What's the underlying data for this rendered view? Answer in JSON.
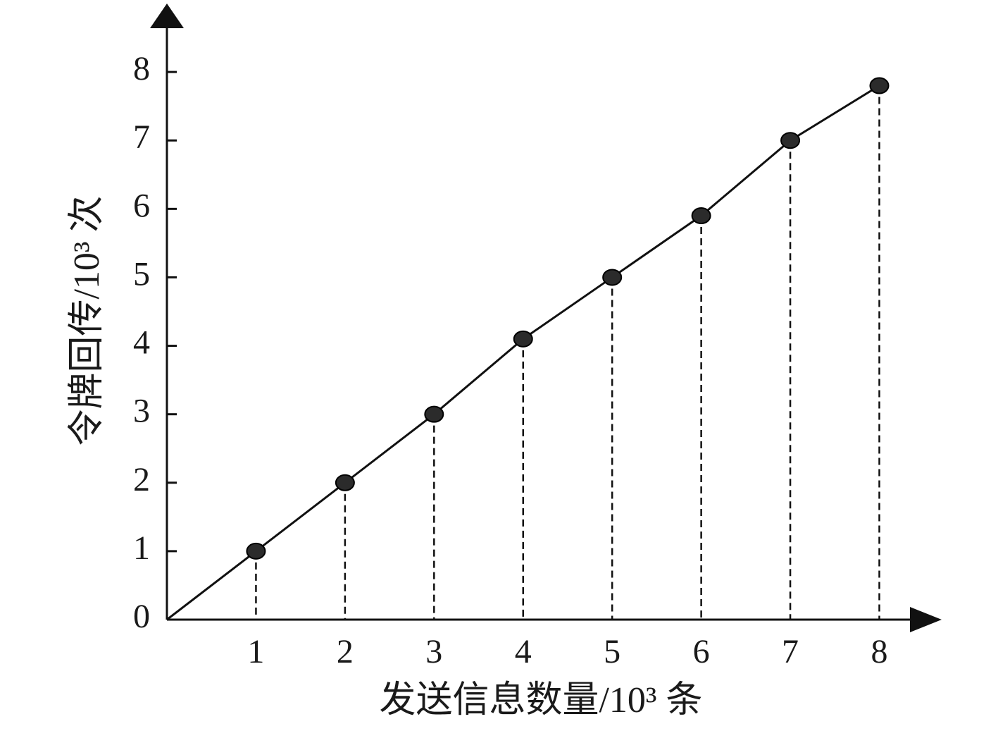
{
  "chart_data": {
    "type": "line",
    "x_label": "发送信息数量/10³ 条",
    "y_label": "令牌回传/10³ 次",
    "x": [
      0,
      1,
      2,
      3,
      4,
      5,
      6,
      7,
      8
    ],
    "values": [
      0,
      1,
      2,
      3,
      4.1,
      5,
      5.9,
      7,
      7.8
    ],
    "color": "#111111",
    "marker_color": "#2b2b2b",
    "xlim": [
      0,
      8.7
    ],
    "ylim": [
      0,
      9
    ],
    "xticks": [
      1,
      2,
      3,
      4,
      5,
      6,
      7,
      8
    ],
    "yticks": [
      0,
      1,
      2,
      3,
      4,
      5,
      6,
      7,
      8
    ],
    "drop_lines": true
  }
}
